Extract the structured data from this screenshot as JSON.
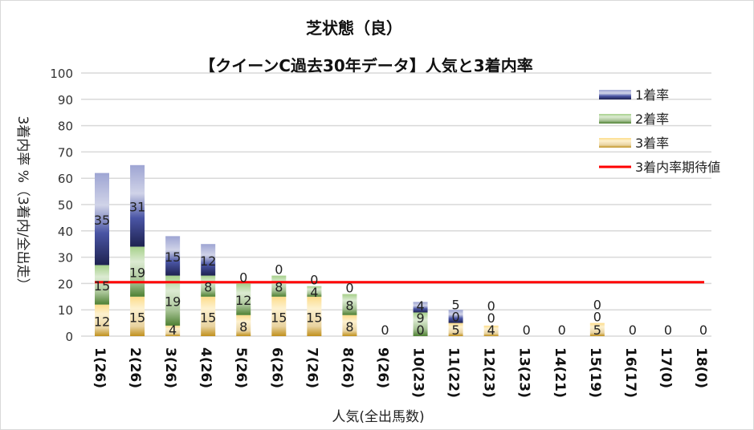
{
  "chart_data": {
    "type": "bar",
    "stacked": true,
    "title": "芝状態（良）",
    "subtitle": "【クイーンC過去30年データ】人気と3着内率",
    "xlabel": "人気(全出馬数)",
    "ylabel": "3着内率 %（3着内/全出走）",
    "ylim": [
      0,
      100
    ],
    "yticks": [
      0,
      10,
      20,
      30,
      40,
      50,
      60,
      70,
      80,
      90,
      100
    ],
    "grid": true,
    "legend_position": "top-right",
    "categories": [
      "1(26)",
      "2(26)",
      "3(26)",
      "4(26)",
      "5(26)",
      "6(26)",
      "7(26)",
      "8(26)",
      "9(26)",
      "10(23)",
      "11(22)",
      "12(23)",
      "13(23)",
      "14(21)",
      "15(19)",
      "16(17)",
      "17(0)",
      "18(0)"
    ],
    "series": [
      {
        "name": "3着率",
        "color": "#c9a23c",
        "values": [
          12,
          15,
          4,
          15,
          8,
          15,
          15,
          8,
          0,
          0,
          5,
          4,
          0,
          0,
          5,
          0,
          0,
          0
        ]
      },
      {
        "name": "2着率",
        "color": "#5a8a3a",
        "values": [
          15,
          19,
          19,
          8,
          12,
          8,
          4,
          8,
          0,
          9,
          0,
          0,
          0,
          0,
          0,
          0,
          0,
          0
        ]
      },
      {
        "name": "1着率",
        "color": "#3b4592",
        "values": [
          35,
          31,
          15,
          12,
          0,
          0,
          0,
          0,
          0,
          4,
          5,
          0,
          0,
          0,
          0,
          0,
          0,
          0
        ]
      }
    ],
    "expected_line": {
      "name": "3着内率期待値",
      "value": 20.5,
      "color": "#ff0000"
    }
  }
}
